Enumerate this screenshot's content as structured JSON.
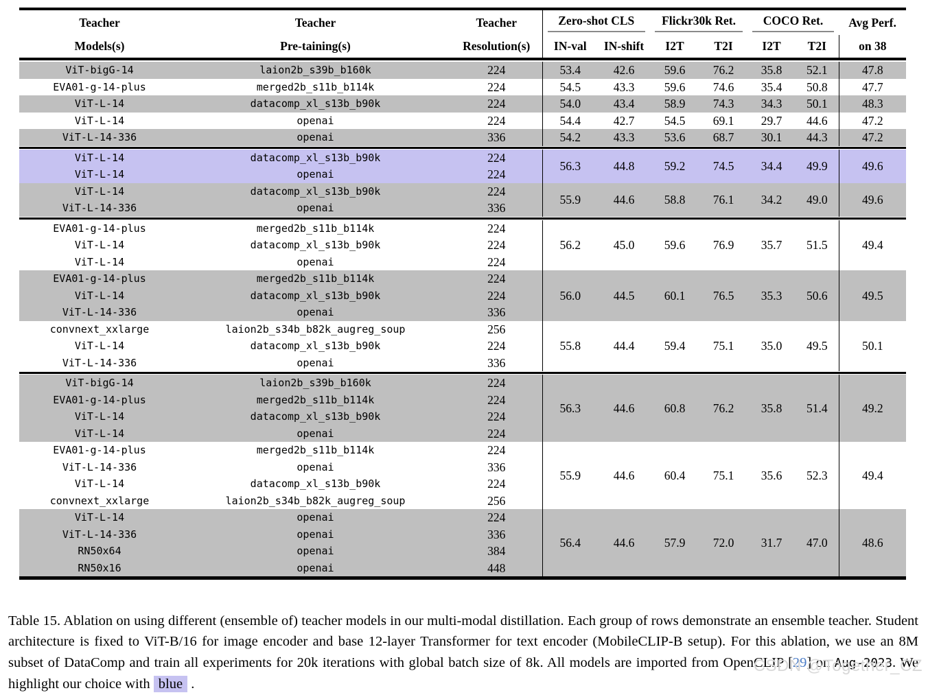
{
  "colors": {
    "row_gray": "#bfbfbf",
    "row_blue": "#c6c2f1",
    "highlight_blue": "#c6c2f1",
    "citation_blue": "#4a7cc7",
    "cmidrule_gray": "#8a8a8a",
    "rule_black": "#000000",
    "watermark_gray": "#d8d8d8"
  },
  "table": {
    "header": {
      "teacher_models_l1": "Teacher",
      "teacher_models_l2": "Models(s)",
      "teacher_pretraining_l1": "Teacher",
      "teacher_pretraining_l2": "Pre-taining(s)",
      "teacher_resolution_l1": "Teacher",
      "teacher_resolution_l2": "Resolution(s)",
      "zero_shot_cls": "Zero-shot CLS",
      "flickr30k": "Flickr30k Ret.",
      "coco": "COCO Ret.",
      "avg_perf_l1": "Avg Perf.",
      "avg_perf_l2": "on 38",
      "sub_labels": [
        "IN-val",
        "IN-shift",
        "I2T",
        "T2I",
        "I2T",
        "T2I"
      ]
    },
    "groups": [
      {
        "blocks": [
          {
            "bg": "gray",
            "rows": [
              [
                "ViT-bigG-14",
                "laion2b_s39b_b160k",
                "224"
              ]
            ],
            "metrics": [
              "53.4",
              "42.6",
              "59.6",
              "76.2",
              "35.8",
              "52.1"
            ],
            "avg": "47.8"
          },
          {
            "bg": "white",
            "rows": [
              [
                "EVA01-g-14-plus",
                "merged2b_s11b_b114k",
                "224"
              ]
            ],
            "metrics": [
              "54.5",
              "43.3",
              "59.6",
              "74.6",
              "35.4",
              "50.8"
            ],
            "avg": "47.7"
          },
          {
            "bg": "gray",
            "rows": [
              [
                "ViT-L-14",
                "datacomp_xl_s13b_b90k",
                "224"
              ]
            ],
            "metrics": [
              "54.0",
              "43.4",
              "58.9",
              "74.3",
              "34.3",
              "50.1"
            ],
            "avg": "48.3"
          },
          {
            "bg": "white",
            "rows": [
              [
                "ViT-L-14",
                "openai",
                "224"
              ]
            ],
            "metrics": [
              "54.4",
              "42.7",
              "54.5",
              "69.1",
              "29.7",
              "44.6"
            ],
            "avg": "47.2"
          },
          {
            "bg": "gray",
            "rows": [
              [
                "ViT-L-14-336",
                "openai",
                "336"
              ]
            ],
            "metrics": [
              "54.2",
              "43.3",
              "53.6",
              "68.7",
              "30.1",
              "44.3"
            ],
            "avg": "47.2"
          }
        ]
      },
      {
        "blocks": [
          {
            "bg": "blue",
            "rows": [
              [
                "ViT-L-14",
                "datacomp_xl_s13b_b90k",
                "224"
              ],
              [
                "ViT-L-14",
                "openai",
                "224"
              ]
            ],
            "metrics": [
              "56.3",
              "44.8",
              "59.2",
              "74.5",
              "34.4",
              "49.9"
            ],
            "avg": "49.6"
          },
          {
            "bg": "gray",
            "rows": [
              [
                "ViT-L-14",
                "datacomp_xl_s13b_b90k",
                "224"
              ],
              [
                "ViT-L-14-336",
                "openai",
                "336"
              ]
            ],
            "metrics": [
              "55.9",
              "44.6",
              "58.8",
              "76.1",
              "34.2",
              "49.0"
            ],
            "avg": "49.6"
          }
        ]
      },
      {
        "blocks": [
          {
            "bg": "white",
            "rows": [
              [
                "EVA01-g-14-plus",
                "merged2b_s11b_b114k",
                "224"
              ],
              [
                "ViT-L-14",
                "datacomp_xl_s13b_b90k",
                "224"
              ],
              [
                "ViT-L-14",
                "openai",
                "224"
              ]
            ],
            "metrics": [
              "56.2",
              "45.0",
              "59.6",
              "76.9",
              "35.7",
              "51.5"
            ],
            "avg": "49.4"
          },
          {
            "bg": "gray",
            "rows": [
              [
                "EVA01-g-14-plus",
                "merged2b_s11b_b114k",
                "224"
              ],
              [
                "ViT-L-14",
                "datacomp_xl_s13b_b90k",
                "224"
              ],
              [
                "ViT-L-14-336",
                "openai",
                "336"
              ]
            ],
            "metrics": [
              "56.0",
              "44.5",
              "60.1",
              "76.5",
              "35.3",
              "50.6"
            ],
            "avg": "49.5"
          },
          {
            "bg": "white",
            "rows": [
              [
                "convnext_xxlarge",
                "laion2b_s34b_b82k_augreg_soup",
                "256"
              ],
              [
                "ViT-L-14",
                "datacomp_xl_s13b_b90k",
                "224"
              ],
              [
                "ViT-L-14-336",
                "openai",
                "336"
              ]
            ],
            "metrics": [
              "55.8",
              "44.4",
              "59.4",
              "75.1",
              "35.0",
              "49.5"
            ],
            "avg": "50.1"
          }
        ]
      },
      {
        "blocks": [
          {
            "bg": "gray",
            "rows": [
              [
                "ViT-bigG-14",
                "laion2b_s39b_b160k",
                "224"
              ],
              [
                "EVA01-g-14-plus",
                "merged2b_s11b_b114k",
                "224"
              ],
              [
                "ViT-L-14",
                "datacomp_xl_s13b_b90k",
                "224"
              ],
              [
                "ViT-L-14",
                "openai",
                "224"
              ]
            ],
            "metrics": [
              "56.3",
              "44.6",
              "60.8",
              "76.2",
              "35.8",
              "51.4"
            ],
            "avg": "49.2"
          },
          {
            "bg": "white",
            "rows": [
              [
                "EVA01-g-14-plus",
                "merged2b_s11b_b114k",
                "224"
              ],
              [
                "ViT-L-14-336",
                "openai",
                "336"
              ],
              [
                "ViT-L-14",
                "datacomp_xl_s13b_b90k",
                "224"
              ],
              [
                "convnext_xxlarge",
                "laion2b_s34b_b82k_augreg_soup",
                "256"
              ]
            ],
            "metrics": [
              "55.9",
              "44.6",
              "60.4",
              "75.1",
              "35.6",
              "52.3"
            ],
            "avg": "49.4"
          },
          {
            "bg": "gray",
            "rows": [
              [
                "ViT-L-14",
                "openai",
                "224"
              ],
              [
                "ViT-L-14-336",
                "openai",
                "336"
              ],
              [
                "RN50x64",
                "openai",
                "384"
              ],
              [
                "RN50x16",
                "openai",
                "448"
              ]
            ],
            "metrics": [
              "56.4",
              "44.6",
              "57.9",
              "72.0",
              "31.7",
              "47.0"
            ],
            "avg": "48.6"
          }
        ]
      }
    ]
  },
  "caption": {
    "segments": [
      {
        "text": "Table 15. Ablation on using different (ensemble of) teacher models in our multi-modal distillation. Each group of rows demonstrate an ensemble teacher. Student architecture is fixed to ViT-B/16 for image encoder and base 12-layer Transformer for text encoder (MobileCLIP-B setup). For this ablation, we use an 8M subset of DataComp and train all experiments for 20k iterations with global batch size of 8k. All models are imported from OpenCLIP ",
        "style": "normal"
      },
      {
        "text": "[",
        "style": "normal"
      },
      {
        "text": "29",
        "style": "cite"
      },
      {
        "text": "]",
        "style": "normal"
      },
      {
        "text": " on ",
        "style": "normal"
      },
      {
        "text": "Aug-2023",
        "style": "mono"
      },
      {
        "text": ". We highlight our choice with ",
        "style": "normal"
      },
      {
        "text": "blue",
        "style": "highlight"
      },
      {
        "text": " .",
        "style": "normal"
      }
    ]
  },
  "watermark": "CSDN @Together_CZ"
}
